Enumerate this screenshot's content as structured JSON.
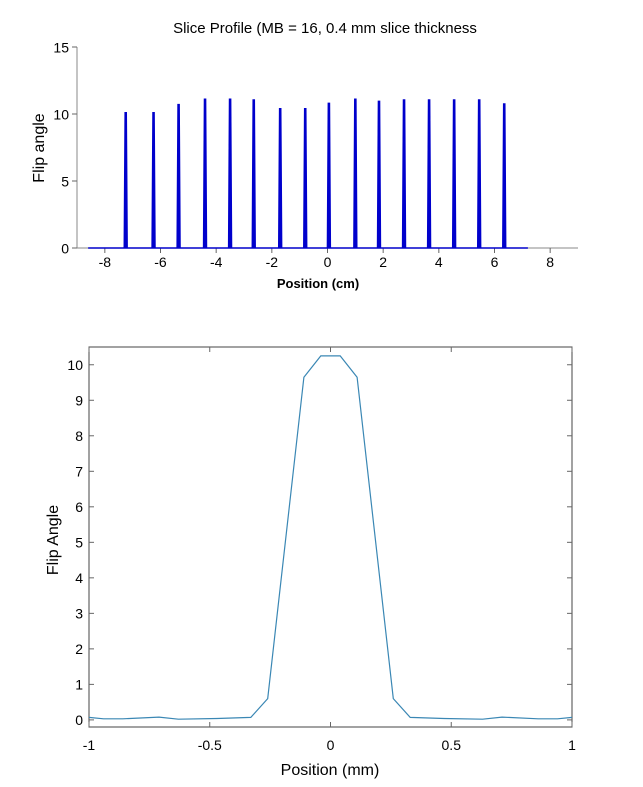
{
  "chart_data": [
    {
      "type": "line",
      "title": "Slice Profile (MB = 16, 0.4 mm slice thickness",
      "xlabel": "Position (cm)",
      "ylabel": "Flip angle",
      "xlim": [
        -9,
        9
      ],
      "ylim": [
        0,
        15
      ],
      "xticks": [
        -8,
        -6,
        -4,
        -2,
        0,
        2,
        4,
        6,
        8
      ],
      "xtick_labels": [
        "-8",
        "-6",
        "-4",
        "-2",
        "0",
        "2",
        "4",
        "6",
        "8"
      ],
      "yticks": [
        0,
        5,
        10,
        15
      ],
      "ytick_labels": [
        "0",
        "5",
        "10",
        "15"
      ],
      "grid": false,
      "line_color": "#0000cc",
      "line_extent": [
        -8.6,
        7.2
      ],
      "series": [
        {
          "peaks_x": [
            -7.25,
            -6.25,
            -5.35,
            -4.4,
            -3.5,
            -2.65,
            -1.7,
            -0.8,
            0.05,
            1.0,
            1.85,
            2.75,
            3.65,
            4.55,
            5.45,
            6.35
          ],
          "peaks_y": [
            10.1,
            10.1,
            10.7,
            11.1,
            11.1,
            11.05,
            10.4,
            10.4,
            10.8,
            11.1,
            10.95,
            11.05,
            11.05,
            11.05,
            11.05,
            10.75
          ]
        }
      ]
    },
    {
      "type": "line",
      "xlabel": "Position (mm)",
      "ylabel": "Flip Angle",
      "xlim": [
        -1,
        1
      ],
      "ylim": [
        -0.2,
        10.5
      ],
      "xticks": [
        -1,
        -0.5,
        0,
        0.5,
        1
      ],
      "xtick_labels": [
        "-1",
        "-0.5",
        "0",
        "0.5",
        "1"
      ],
      "yticks": [
        0,
        1,
        2,
        3,
        4,
        5,
        6,
        7,
        8,
        9,
        10
      ],
      "ytick_labels": [
        "0",
        "1",
        "2",
        "3",
        "4",
        "5",
        "6",
        "7",
        "8",
        "9",
        "10"
      ],
      "grid": false,
      "line_color": "#3a87b4",
      "series": [
        {
          "x": [
            -1,
            -0.94,
            -0.86,
            -0.71,
            -0.63,
            -0.47,
            -0.33,
            -0.26,
            -0.11,
            -0.04,
            0.04,
            0.11,
            0.26,
            0.33,
            0.47,
            0.63,
            0.71,
            0.86,
            0.94,
            1
          ],
          "y": [
            0.07,
            0.03,
            0.03,
            0.08,
            0.02,
            0.04,
            0.07,
            0.6,
            9.65,
            10.25,
            10.25,
            9.65,
            0.6,
            0.07,
            0.04,
            0.02,
            0.08,
            0.03,
            0.03,
            0.07
          ]
        }
      ]
    }
  ]
}
